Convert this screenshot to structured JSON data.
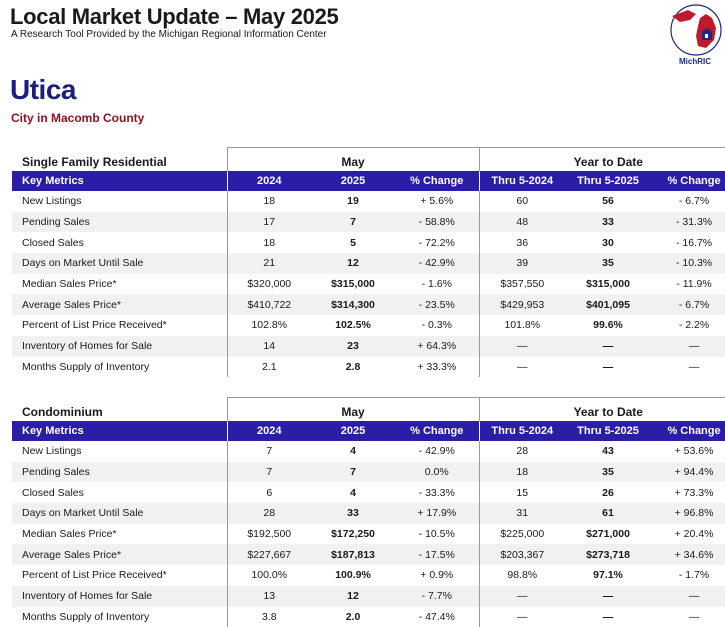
{
  "header": {
    "title": "Local Market Update – May 2025",
    "subtitle": "A Research Tool Provided by the Michigan Regional Information Center",
    "logo_text": "MichRIC"
  },
  "location": {
    "city": "Utica",
    "county": "City in Macomb County"
  },
  "columns": {
    "key_metrics": "Key Metrics",
    "month_group": "May",
    "ytd_group": "Year to Date",
    "y2024": "2024",
    "y2025": "2025",
    "pct_change": "% Change",
    "ytd2024": "Thru 5-2024",
    "ytd2025": "Thru 5-2025"
  },
  "colors": {
    "header_bar": "#2a1ea6",
    "city": "#1b1f7a",
    "county": "#8a1424"
  },
  "sections": [
    {
      "type": "Single Family Residential",
      "rows": [
        {
          "metric": "New Listings",
          "m2024": "18",
          "m2025": "19",
          "mchg": "+ 5.6%",
          "y2024": "60",
          "y2025": "56",
          "ychg": "- 6.7%"
        },
        {
          "metric": "Pending Sales",
          "m2024": "17",
          "m2025": "7",
          "mchg": "- 58.8%",
          "y2024": "48",
          "y2025": "33",
          "ychg": "- 31.3%"
        },
        {
          "metric": "Closed Sales",
          "m2024": "18",
          "m2025": "5",
          "mchg": "- 72.2%",
          "y2024": "36",
          "y2025": "30",
          "ychg": "- 16.7%"
        },
        {
          "metric": "Days on Market Until Sale",
          "m2024": "21",
          "m2025": "12",
          "mchg": "- 42.9%",
          "y2024": "39",
          "y2025": "35",
          "ychg": "- 10.3%"
        },
        {
          "metric": "Median Sales Price*",
          "m2024": "$320,000",
          "m2025": "$315,000",
          "mchg": "- 1.6%",
          "y2024": "$357,550",
          "y2025": "$315,000",
          "ychg": "- 11.9%"
        },
        {
          "metric": "Average Sales Price*",
          "m2024": "$410,722",
          "m2025": "$314,300",
          "mchg": "- 23.5%",
          "y2024": "$429,953",
          "y2025": "$401,095",
          "ychg": "- 6.7%"
        },
        {
          "metric": "Percent of List Price Received*",
          "m2024": "102.8%",
          "m2025": "102.5%",
          "mchg": "- 0.3%",
          "y2024": "101.8%",
          "y2025": "99.6%",
          "ychg": "- 2.2%"
        },
        {
          "metric": "Inventory of Homes for Sale",
          "m2024": "14",
          "m2025": "23",
          "mchg": "+ 64.3%",
          "y2024": "—",
          "y2025": "—",
          "ychg": "—"
        },
        {
          "metric": "Months Supply of Inventory",
          "m2024": "2.1",
          "m2025": "2.8",
          "mchg": "+ 33.3%",
          "y2024": "—",
          "y2025": "—",
          "ychg": "—"
        }
      ]
    },
    {
      "type": "Condominium",
      "rows": [
        {
          "metric": "New Listings",
          "m2024": "7",
          "m2025": "4",
          "mchg": "- 42.9%",
          "y2024": "28",
          "y2025": "43",
          "ychg": "+ 53.6%"
        },
        {
          "metric": "Pending Sales",
          "m2024": "7",
          "m2025": "7",
          "mchg": "0.0%",
          "y2024": "18",
          "y2025": "35",
          "ychg": "+ 94.4%"
        },
        {
          "metric": "Closed Sales",
          "m2024": "6",
          "m2025": "4",
          "mchg": "- 33.3%",
          "y2024": "15",
          "y2025": "26",
          "ychg": "+ 73.3%"
        },
        {
          "metric": "Days on Market Until Sale",
          "m2024": "28",
          "m2025": "33",
          "mchg": "+ 17.9%",
          "y2024": "31",
          "y2025": "61",
          "ychg": "+ 96.8%"
        },
        {
          "metric": "Median Sales Price*",
          "m2024": "$192,500",
          "m2025": "$172,250",
          "mchg": "- 10.5%",
          "y2024": "$225,000",
          "y2025": "$271,000",
          "ychg": "+ 20.4%"
        },
        {
          "metric": "Average Sales Price*",
          "m2024": "$227,667",
          "m2025": "$187,813",
          "mchg": "- 17.5%",
          "y2024": "$203,367",
          "y2025": "$273,718",
          "ychg": "+ 34.6%"
        },
        {
          "metric": "Percent of List Price Received*",
          "m2024": "100.0%",
          "m2025": "100.9%",
          "mchg": "+ 0.9%",
          "y2024": "98.8%",
          "y2025": "97.1%",
          "ychg": "- 1.7%"
        },
        {
          "metric": "Inventory of Homes for Sale",
          "m2024": "13",
          "m2025": "12",
          "mchg": "- 7.7%",
          "y2024": "—",
          "y2025": "—",
          "ychg": "—"
        },
        {
          "metric": "Months Supply of Inventory",
          "m2024": "3.8",
          "m2025": "2.0",
          "mchg": "- 47.4%",
          "y2024": "—",
          "y2025": "—",
          "ychg": "—"
        }
      ]
    }
  ]
}
